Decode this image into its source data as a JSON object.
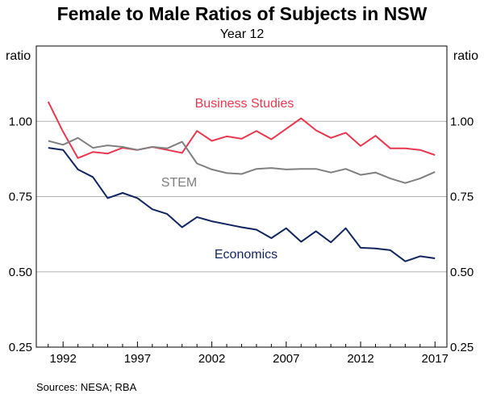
{
  "chart_data": {
    "type": "line",
    "title": "Female to Male Ratios of Subjects in NSW",
    "subtitle": "Year 12",
    "ylabel_left": "ratio",
    "ylabel_right": "ratio",
    "ylim": [
      0.25,
      1.25
    ],
    "yticks": [
      0.25,
      0.5,
      0.75,
      1.0
    ],
    "ytick_labels": [
      "0.25",
      "0.50",
      "0.75",
      "1.00"
    ],
    "xlim": [
      1990.2,
      2017.8
    ],
    "xticks": [
      1992,
      1997,
      2002,
      2007,
      2012,
      2017
    ],
    "xtick_labels": [
      "1992",
      "1997",
      "2002",
      "2007",
      "2012",
      "2017"
    ],
    "grid": true,
    "x": [
      1991,
      1992,
      1993,
      1994,
      1995,
      1996,
      1997,
      1998,
      1999,
      2000,
      2001,
      2002,
      2003,
      2004,
      2005,
      2006,
      2007,
      2008,
      2009,
      2010,
      2011,
      2012,
      2013,
      2014,
      2015,
      2016,
      2017
    ],
    "series": [
      {
        "name": "Business Studies",
        "color": "#e8384f",
        "values": [
          1.065,
          0.965,
          0.878,
          0.898,
          0.893,
          0.912,
          0.905,
          0.915,
          0.905,
          0.895,
          0.968,
          0.935,
          0.95,
          0.942,
          0.968,
          0.94,
          0.975,
          1.01,
          0.97,
          0.945,
          0.962,
          0.918,
          0.952,
          0.91,
          0.91,
          0.905,
          0.888
        ]
      },
      {
        "name": "STEM",
        "color": "#808080",
        "values": [
          0.935,
          0.922,
          0.945,
          0.912,
          0.92,
          0.915,
          0.905,
          0.915,
          0.91,
          0.932,
          0.86,
          0.84,
          0.828,
          0.825,
          0.842,
          0.845,
          0.84,
          0.842,
          0.842,
          0.83,
          0.842,
          0.822,
          0.83,
          0.81,
          0.795,
          0.81,
          0.832
        ]
      },
      {
        "name": "Economics",
        "color": "#11255f",
        "values": [
          0.912,
          0.905,
          0.84,
          0.815,
          0.745,
          0.762,
          0.745,
          0.708,
          0.692,
          0.648,
          0.682,
          0.668,
          0.658,
          0.648,
          0.64,
          0.612,
          0.645,
          0.6,
          0.635,
          0.598,
          0.645,
          0.58,
          0.578,
          0.572,
          0.535,
          0.552,
          0.545
        ]
      }
    ],
    "series_labels": [
      "Business Studies",
      "STEM",
      "Economics"
    ],
    "source": "Sources: NESA; RBA"
  }
}
